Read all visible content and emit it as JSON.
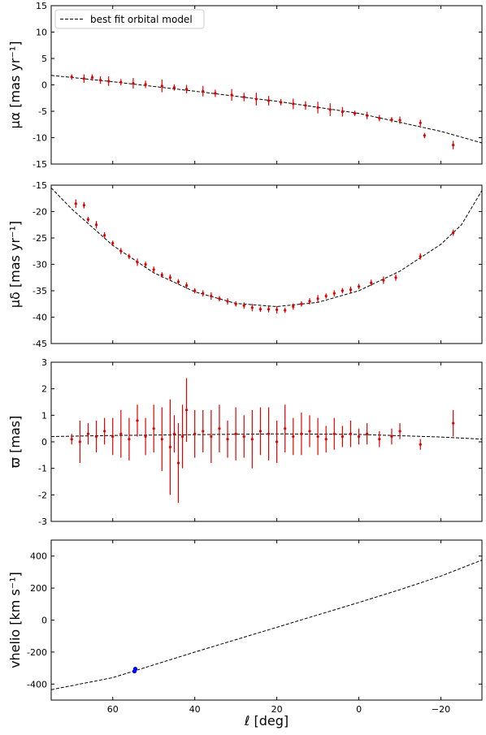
{
  "chart_data": [
    {
      "type": "scatter",
      "panel": "top",
      "ylabel": "μα [mas yr⁻¹]",
      "xlim": [
        75,
        -30
      ],
      "ylim": [
        -15,
        15
      ],
      "yticks": [
        15,
        10,
        5,
        0,
        -5,
        -10,
        -15
      ],
      "legend": {
        "placement": "top-left",
        "label": "best fit orbital model"
      },
      "model": {
        "name": "best fit orbital model",
        "style": "dashed",
        "color": "#000000",
        "x": [
          75,
          60,
          40,
          20,
          0,
          -20,
          -30
        ],
        "y": [
          1.8,
          0.6,
          -1.2,
          -3.1,
          -5.4,
          -8.8,
          -11.0
        ]
      },
      "data": {
        "color": "#e00000",
        "x": [
          70,
          67,
          65,
          63,
          61,
          58,
          55,
          52,
          48,
          45,
          42,
          38,
          35,
          31,
          28,
          25,
          22,
          19,
          16,
          13,
          10,
          7,
          4,
          1,
          -2,
          -5,
          -8,
          -10,
          -15,
          -16,
          -23
        ],
        "y": [
          1.5,
          1.2,
          1.4,
          0.9,
          0.7,
          0.5,
          0.3,
          0.1,
          -0.2,
          -0.5,
          -0.8,
          -1.2,
          -1.6,
          -1.9,
          -2.3,
          -2.7,
          -3.0,
          -3.3,
          -3.6,
          -3.9,
          -4.3,
          -4.7,
          -5.1,
          -5.4,
          -5.8,
          -6.3,
          -6.6,
          -6.7,
          -7.2,
          -9.6,
          -11.4
        ],
        "err": [
          0.5,
          0.8,
          0.6,
          0.7,
          0.9,
          0.6,
          1.0,
          0.7,
          1.2,
          0.6,
          0.8,
          1.0,
          0.7,
          1.1,
          0.8,
          1.2,
          0.9,
          0.6,
          1.0,
          0.8,
          1.1,
          1.2,
          0.9,
          0.5,
          0.7,
          0.6,
          0.5,
          0.7,
          0.6,
          0.5,
          0.8
        ]
      }
    },
    {
      "type": "scatter",
      "panel": "second",
      "ylabel": "μδ [mas yr⁻¹]",
      "xlim": [
        75,
        -30
      ],
      "ylim": [
        -45,
        -15
      ],
      "yticks": [
        -15,
        -20,
        -25,
        -30,
        -35,
        -40,
        -45
      ],
      "model": {
        "name": "best fit orbital model",
        "style": "dashed",
        "color": "#000000",
        "x": [
          75,
          70,
          60,
          50,
          40,
          30,
          20,
          10,
          0,
          -10,
          -20,
          -25,
          -30
        ],
        "y": [
          -15.5,
          -19.5,
          -26.4,
          -31.6,
          -35.2,
          -37.4,
          -38.0,
          -37.2,
          -35.0,
          -31.3,
          -26.2,
          -22.5,
          -16.0
        ]
      },
      "data": {
        "color": "#e00000",
        "x": [
          69,
          67,
          66,
          64,
          62,
          60,
          58,
          56,
          54,
          52,
          50,
          48,
          46,
          44,
          42,
          40,
          38,
          36,
          34,
          32,
          30,
          28,
          26,
          24,
          22,
          20,
          18,
          16,
          14,
          12,
          10,
          8,
          6,
          4,
          2,
          0,
          -3,
          -6,
          -9,
          -15,
          -23
        ],
        "y": [
          -18.5,
          -18.8,
          -21.5,
          -22.5,
          -24.5,
          -26.0,
          -27.5,
          -28.5,
          -29.6,
          -30.0,
          -31.0,
          -32.0,
          -32.5,
          -33.3,
          -34.0,
          -35.0,
          -35.5,
          -36.0,
          -36.5,
          -37.0,
          -37.5,
          -37.8,
          -38.2,
          -38.5,
          -38.5,
          -38.6,
          -38.7,
          -38.0,
          -37.5,
          -37.0,
          -36.5,
          -36.0,
          -35.5,
          -35.0,
          -34.8,
          -34.2,
          -33.5,
          -33.0,
          -32.5,
          -28.5,
          -24.0
        ],
        "err": [
          0.8,
          0.6,
          0.5,
          0.7,
          0.6,
          0.5,
          0.6,
          0.5,
          0.7,
          0.5,
          0.6,
          0.5,
          0.6,
          0.5,
          0.6,
          0.5,
          0.6,
          0.7,
          0.5,
          0.6,
          0.5,
          0.6,
          0.7,
          0.5,
          0.6,
          0.7,
          0.5,
          0.6,
          0.5,
          0.6,
          0.7,
          0.5,
          0.6,
          0.5,
          0.6,
          0.5,
          0.6,
          0.7,
          0.6,
          0.6,
          0.6
        ]
      }
    },
    {
      "type": "scatter",
      "panel": "third",
      "ylabel": "ϖ [mas]",
      "xlim": [
        75,
        -30
      ],
      "ylim": [
        -3,
        3
      ],
      "yticks": [
        3,
        2,
        1,
        0,
        -1,
        -2,
        -3
      ],
      "model": {
        "name": "best fit orbital model",
        "style": "dashed",
        "color": "#000000",
        "x": [
          75,
          60,
          40,
          20,
          0,
          -20,
          -30
        ],
        "y": [
          0.2,
          0.24,
          0.27,
          0.3,
          0.28,
          0.18,
          0.1
        ]
      },
      "data": {
        "color": "#e00000",
        "x": [
          70,
          68,
          66,
          64,
          62,
          60,
          58,
          56,
          54,
          52,
          50,
          48,
          46,
          45,
          44,
          43,
          42,
          40,
          38,
          36,
          34,
          32,
          30,
          28,
          26,
          24,
          22,
          20,
          18,
          16,
          14,
          12,
          10,
          8,
          6,
          4,
          2,
          0,
          -2,
          -5,
          -8,
          -10,
          -15,
          -23
        ],
        "y": [
          0.1,
          0.0,
          0.3,
          0.2,
          0.4,
          0.2,
          0.3,
          0.1,
          0.8,
          0.2,
          0.5,
          0.1,
          -0.2,
          0.3,
          -0.8,
          0.2,
          1.2,
          0.3,
          0.4,
          0.2,
          0.5,
          0.1,
          0.3,
          0.2,
          0.1,
          0.4,
          0.3,
          0.0,
          0.5,
          0.2,
          0.3,
          0.4,
          0.2,
          0.1,
          0.3,
          0.2,
          0.3,
          0.2,
          0.3,
          0.1,
          0.2,
          0.4,
          -0.1,
          0.7
        ],
        "err": [
          0.2,
          0.8,
          0.4,
          0.6,
          0.5,
          0.7,
          0.9,
          0.8,
          0.6,
          0.7,
          0.9,
          1.2,
          1.8,
          0.7,
          1.5,
          1.2,
          1.2,
          0.9,
          0.8,
          1.0,
          0.9,
          0.7,
          1.0,
          0.8,
          1.1,
          0.9,
          1.0,
          0.8,
          0.9,
          0.7,
          0.8,
          0.6,
          0.7,
          0.5,
          0.6,
          0.4,
          0.5,
          0.3,
          0.4,
          0.3,
          0.3,
          0.3,
          0.2,
          0.5
        ]
      }
    },
    {
      "type": "scatter",
      "panel": "bottom",
      "xlabel": "ℓ [deg]",
      "ylabel": "vhelio [km s⁻¹]",
      "xlim": [
        75,
        -30
      ],
      "ylim": [
        -500,
        500
      ],
      "xticks": [
        60,
        40,
        20,
        0,
        -20
      ],
      "yticks": [
        400,
        200,
        0,
        -200,
        -400
      ],
      "model": {
        "name": "best fit orbital model",
        "style": "dashed",
        "color": "#000000",
        "x": [
          75,
          60,
          40,
          20,
          0,
          -10,
          -20,
          -30
        ],
        "y": [
          -435,
          -360,
          -200,
          -45,
          110,
          190,
          275,
          375
        ]
      },
      "data": {
        "color": "#0000ff",
        "x": [
          54.5,
          54.7
        ],
        "y": [
          -305,
          -320
        ],
        "err": [
          8,
          8
        ]
      }
    }
  ]
}
